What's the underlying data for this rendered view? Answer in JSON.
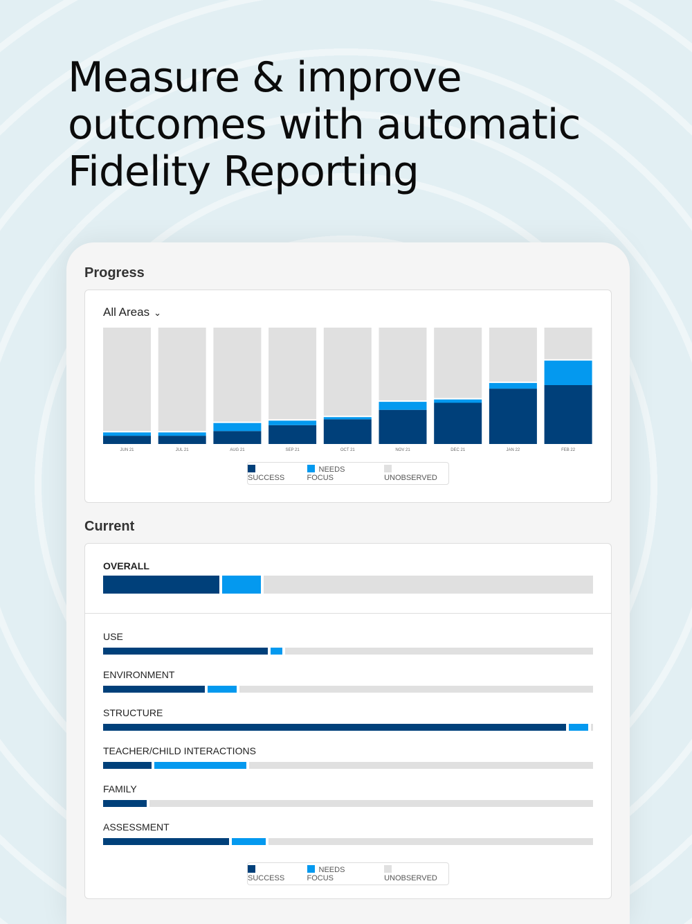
{
  "headline": "Measure & improve outcomes with automatic Fidelity Reporting",
  "colors": {
    "success": "#00407a",
    "needs_focus": "#0499ef",
    "unobserved": "#e0e0e0",
    "background": "#e2eff3"
  },
  "progress": {
    "title": "Progress",
    "filter": {
      "value": "All Areas",
      "icon": "chevron-down-icon"
    },
    "legend": [
      "SUCCESS",
      "NEEDS FOCUS",
      "UNOBSERVED"
    ]
  },
  "chart_data": {
    "type": "bar",
    "stacked": true,
    "categories": [
      "JUN 21",
      "JUL 21",
      "AUG 21",
      "SEP 21",
      "OCT 21",
      "NOV 21",
      "DEC 21",
      "JAN 22",
      "FEB 22"
    ],
    "series": [
      {
        "name": "SUCCESS",
        "values": [
          7,
          7,
          11,
          16,
          21,
          29,
          35,
          47,
          50
        ]
      },
      {
        "name": "NEEDS FOCUS",
        "values": [
          4,
          4,
          8,
          5,
          3,
          8,
          4,
          6,
          22
        ]
      },
      {
        "name": "UNOBSERVED",
        "values": [
          89,
          89,
          81,
          79,
          76,
          63,
          61,
          47,
          28
        ]
      }
    ],
    "ylim": [
      0,
      100
    ],
    "grid": false,
    "legend": "bottom"
  },
  "current": {
    "title": "Current",
    "overall": {
      "label": "OVERALL",
      "success": 24,
      "needs_focus": 8
    },
    "rows": [
      {
        "label": "USE",
        "success": 34,
        "needs_focus": 2.5
      },
      {
        "label": "ENVIRONMENT",
        "success": 21,
        "needs_focus": 6
      },
      {
        "label": "STRUCTURE",
        "success": 95.5,
        "needs_focus": 4
      },
      {
        "label": "TEACHER/CHILD INTERACTIONS",
        "success": 10,
        "needs_focus": 19
      },
      {
        "label": "FAMILY",
        "success": 9,
        "needs_focus": 0
      },
      {
        "label": "ASSESSMENT",
        "success": 26,
        "needs_focus": 7
      }
    ],
    "legend": [
      "SUCCESS",
      "NEEDS FOCUS",
      "UNOBSERVED"
    ]
  }
}
